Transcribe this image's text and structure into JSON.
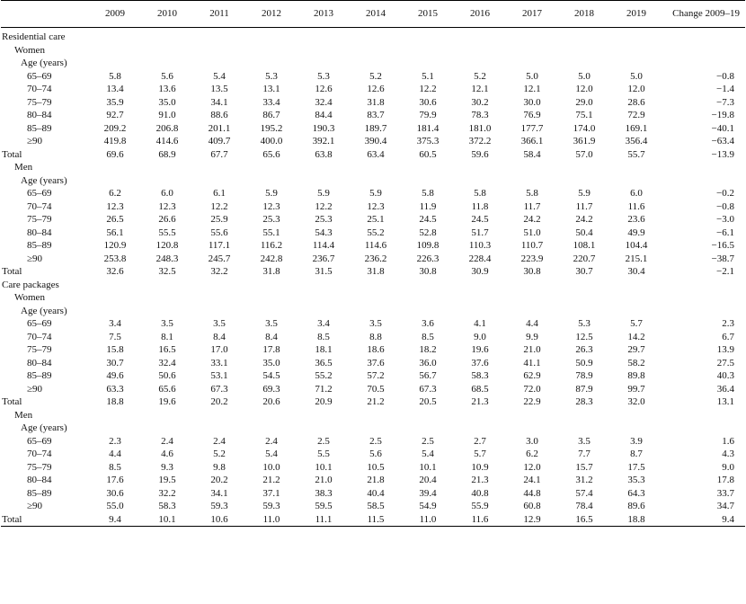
{
  "table": {
    "columns": [
      "",
      "2009",
      "2010",
      "2011",
      "2012",
      "2013",
      "2014",
      "2015",
      "2016",
      "2017",
      "2018",
      "2019",
      "Change 2009–19"
    ],
    "rows": [
      {
        "level": 0,
        "label": "Residential care",
        "values": []
      },
      {
        "level": 1,
        "label": "Women",
        "values": []
      },
      {
        "level": 2,
        "label": "Age (years)",
        "values": []
      },
      {
        "level": 3,
        "label": "65–69",
        "values": [
          "5.8",
          "5.6",
          "5.4",
          "5.3",
          "5.3",
          "5.2",
          "5.1",
          "5.2",
          "5.0",
          "5.0",
          "5.0",
          "−0.8"
        ]
      },
      {
        "level": 3,
        "label": "70–74",
        "values": [
          "13.4",
          "13.6",
          "13.5",
          "13.1",
          "12.6",
          "12.6",
          "12.2",
          "12.1",
          "12.1",
          "12.0",
          "12.0",
          "−1.4"
        ]
      },
      {
        "level": 3,
        "label": "75–79",
        "values": [
          "35.9",
          "35.0",
          "34.1",
          "33.4",
          "32.4",
          "31.8",
          "30.6",
          "30.2",
          "30.0",
          "29.0",
          "28.6",
          "−7.3"
        ]
      },
      {
        "level": 3,
        "label": "80–84",
        "values": [
          "92.7",
          "91.0",
          "88.6",
          "86.7",
          "84.4",
          "83.7",
          "79.9",
          "78.3",
          "76.9",
          "75.1",
          "72.9",
          "−19.8"
        ]
      },
      {
        "level": 3,
        "label": "85–89",
        "values": [
          "209.2",
          "206.8",
          "201.1",
          "195.2",
          "190.3",
          "189.7",
          "181.4",
          "181.0",
          "177.7",
          "174.0",
          "169.1",
          "−40.1"
        ]
      },
      {
        "level": 3,
        "label": "≥90",
        "values": [
          "419.8",
          "414.6",
          "409.7",
          "400.0",
          "392.1",
          "390.4",
          "375.3",
          "372.2",
          "366.1",
          "361.9",
          "356.4",
          "−63.4"
        ]
      },
      {
        "level": 4,
        "label": "Total",
        "values": [
          "69.6",
          "68.9",
          "67.7",
          "65.6",
          "63.8",
          "63.4",
          "60.5",
          "59.6",
          "58.4",
          "57.0",
          "55.7",
          "−13.9"
        ]
      },
      {
        "level": 1,
        "label": "Men",
        "values": []
      },
      {
        "level": 2,
        "label": "Age (years)",
        "values": []
      },
      {
        "level": 3,
        "label": "65–69",
        "values": [
          "6.2",
          "6.0",
          "6.1",
          "5.9",
          "5.9",
          "5.9",
          "5.8",
          "5.8",
          "5.8",
          "5.9",
          "6.0",
          "−0.2"
        ]
      },
      {
        "level": 3,
        "label": "70–74",
        "values": [
          "12.3",
          "12.3",
          "12.2",
          "12.3",
          "12.2",
          "12.3",
          "11.9",
          "11.8",
          "11.7",
          "11.7",
          "11.6",
          "−0.8"
        ]
      },
      {
        "level": 3,
        "label": "75–79",
        "values": [
          "26.5",
          "26.6",
          "25.9",
          "25.3",
          "25.3",
          "25.1",
          "24.5",
          "24.5",
          "24.2",
          "24.2",
          "23.6",
          "−3.0"
        ]
      },
      {
        "level": 3,
        "label": "80–84",
        "values": [
          "56.1",
          "55.5",
          "55.6",
          "55.1",
          "54.3",
          "55.2",
          "52.8",
          "51.7",
          "51.0",
          "50.4",
          "49.9",
          "−6.1"
        ]
      },
      {
        "level": 3,
        "label": "85–89",
        "values": [
          "120.9",
          "120.8",
          "117.1",
          "116.2",
          "114.4",
          "114.6",
          "109.8",
          "110.3",
          "110.7",
          "108.1",
          "104.4",
          "−16.5"
        ]
      },
      {
        "level": 3,
        "label": "≥90",
        "values": [
          "253.8",
          "248.3",
          "245.7",
          "242.8",
          "236.7",
          "236.2",
          "226.3",
          "228.4",
          "223.9",
          "220.7",
          "215.1",
          "−38.7"
        ]
      },
      {
        "level": 4,
        "label": "Total",
        "values": [
          "32.6",
          "32.5",
          "32.2",
          "31.8",
          "31.5",
          "31.8",
          "30.8",
          "30.9",
          "30.8",
          "30.7",
          "30.4",
          "−2.1"
        ]
      },
      {
        "level": 0,
        "label": "Care packages",
        "values": []
      },
      {
        "level": 1,
        "label": "Women",
        "values": []
      },
      {
        "level": 2,
        "label": "Age (years)",
        "values": []
      },
      {
        "level": 3,
        "label": "65–69",
        "values": [
          "3.4",
          "3.5",
          "3.5",
          "3.5",
          "3.4",
          "3.5",
          "3.6",
          "4.1",
          "4.4",
          "5.3",
          "5.7",
          "2.3"
        ]
      },
      {
        "level": 3,
        "label": "70–74",
        "values": [
          "7.5",
          "8.1",
          "8.4",
          "8.4",
          "8.5",
          "8.8",
          "8.5",
          "9.0",
          "9.9",
          "12.5",
          "14.2",
          "6.7"
        ]
      },
      {
        "level": 3,
        "label": "75–79",
        "values": [
          "15.8",
          "16.5",
          "17.0",
          "17.8",
          "18.1",
          "18.6",
          "18.2",
          "19.6",
          "21.0",
          "26.3",
          "29.7",
          "13.9"
        ]
      },
      {
        "level": 3,
        "label": "80–84",
        "values": [
          "30.7",
          "32.4",
          "33.1",
          "35.0",
          "36.5",
          "37.6",
          "36.0",
          "37.6",
          "41.1",
          "50.9",
          "58.2",
          "27.5"
        ]
      },
      {
        "level": 3,
        "label": "85–89",
        "values": [
          "49.6",
          "50.6",
          "53.1",
          "54.5",
          "55.2",
          "57.2",
          "56.7",
          "58.3",
          "62.9",
          "78.9",
          "89.8",
          "40.3"
        ]
      },
      {
        "level": 3,
        "label": "≥90",
        "values": [
          "63.3",
          "65.6",
          "67.3",
          "69.3",
          "71.2",
          "70.5",
          "67.3",
          "68.5",
          "72.0",
          "87.9",
          "99.7",
          "36.4"
        ]
      },
      {
        "level": 4,
        "label": "Total",
        "values": [
          "18.8",
          "19.6",
          "20.2",
          "20.6",
          "20.9",
          "21.2",
          "20.5",
          "21.3",
          "22.9",
          "28.3",
          "32.0",
          "13.1"
        ]
      },
      {
        "level": 1,
        "label": "Men",
        "values": []
      },
      {
        "level": 2,
        "label": "Age (years)",
        "values": []
      },
      {
        "level": 3,
        "label": "65–69",
        "values": [
          "2.3",
          "2.4",
          "2.4",
          "2.4",
          "2.5",
          "2.5",
          "2.5",
          "2.7",
          "3.0",
          "3.5",
          "3.9",
          "1.6"
        ]
      },
      {
        "level": 3,
        "label": "70–74",
        "values": [
          "4.4",
          "4.6",
          "5.2",
          "5.4",
          "5.5",
          "5.6",
          "5.4",
          "5.7",
          "6.2",
          "7.7",
          "8.7",
          "4.3"
        ]
      },
      {
        "level": 3,
        "label": "75–79",
        "values": [
          "8.5",
          "9.3",
          "9.8",
          "10.0",
          "10.1",
          "10.5",
          "10.1",
          "10.9",
          "12.0",
          "15.7",
          "17.5",
          "9.0"
        ]
      },
      {
        "level": 3,
        "label": "80–84",
        "values": [
          "17.6",
          "19.5",
          "20.2",
          "21.2",
          "21.0",
          "21.8",
          "20.4",
          "21.3",
          "24.1",
          "31.2",
          "35.3",
          "17.8"
        ]
      },
      {
        "level": 3,
        "label": "85–89",
        "values": [
          "30.6",
          "32.2",
          "34.1",
          "37.1",
          "38.3",
          "40.4",
          "39.4",
          "40.8",
          "44.8",
          "57.4",
          "64.3",
          "33.7"
        ]
      },
      {
        "level": 3,
        "label": "≥90",
        "values": [
          "55.0",
          "58.3",
          "59.3",
          "59.3",
          "59.5",
          "58.5",
          "54.9",
          "55.9",
          "60.8",
          "78.4",
          "89.6",
          "34.7"
        ]
      },
      {
        "level": 4,
        "label": "Total",
        "values": [
          "9.4",
          "10.1",
          "10.6",
          "11.0",
          "11.1",
          "11.5",
          "11.0",
          "11.6",
          "12.9",
          "16.5",
          "18.8",
          "9.4"
        ]
      }
    ]
  }
}
